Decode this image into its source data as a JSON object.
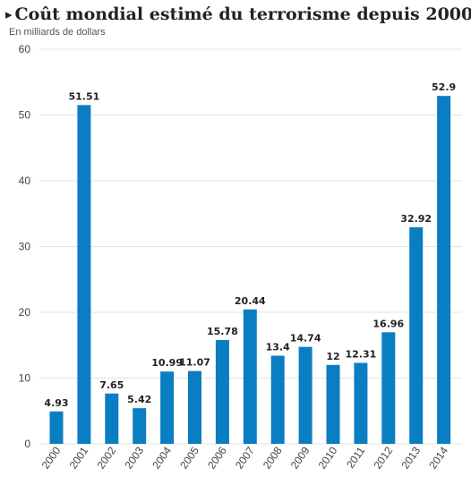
{
  "header": {
    "title": "Coût mondial estimé du terrorisme depuis 2000",
    "subtitle": "En milliards de dollars",
    "marker": "▸"
  },
  "colors": {
    "bar": "#0a7ec2",
    "grid": "#e3e3e3",
    "text": "#222222"
  },
  "chart_data": {
    "type": "bar",
    "title": "Coût mondial estimé du terrorisme depuis 2000",
    "ylabel": "En milliards de dollars",
    "xlabel": "",
    "categories": [
      "2000",
      "2001",
      "2002",
      "2003",
      "2004",
      "2005",
      "2006",
      "2007",
      "2008",
      "2009",
      "2010",
      "2011",
      "2012",
      "2013",
      "2014"
    ],
    "values": [
      4.93,
      51.51,
      7.65,
      5.42,
      10.99,
      11.07,
      15.78,
      20.44,
      13.4,
      14.74,
      12,
      12.31,
      16.96,
      32.92,
      52.9
    ],
    "data_labels": [
      "4.93",
      "51.51",
      "7.65",
      "5.42",
      "10.99",
      "11.07",
      "15.78",
      "20.44",
      "13.4",
      "14.74",
      "12",
      "12.31",
      "16.96",
      "32.92",
      "52.9"
    ],
    "ylim": [
      0,
      60
    ],
    "yticks": [
      0,
      10,
      20,
      30,
      40,
      50,
      60
    ],
    "ytick_labels": [
      "0",
      "10",
      "20",
      "30",
      "40",
      "50",
      "60"
    ],
    "grid": true,
    "legend": "none"
  }
}
